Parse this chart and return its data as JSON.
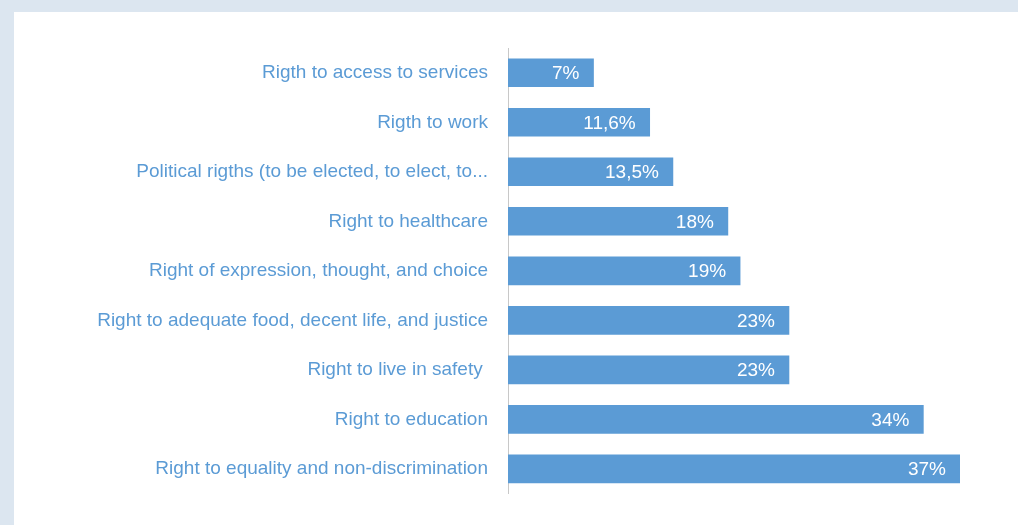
{
  "chart_data": {
    "type": "bar",
    "orientation": "horizontal",
    "categories": [
      "Rigth to access to services",
      "Rigth to work",
      "Political rigths (to be elected, to elect, to...",
      "Right to healthcare",
      "Right of expression, thought, and choice",
      "Right to adequate food, decent life, and justice",
      "Right to live in safety ",
      "Right to education",
      "Right to equality and non-discrimination"
    ],
    "values": [
      7,
      11.6,
      13.5,
      18,
      19,
      23,
      23,
      34,
      37
    ],
    "value_labels": [
      "7%",
      "11,6%",
      "13,5%",
      "18%",
      "19%",
      "23%",
      "23%",
      "34%",
      "37%"
    ],
    "color": "#5b9bd5",
    "grid": false,
    "legend": false
  }
}
